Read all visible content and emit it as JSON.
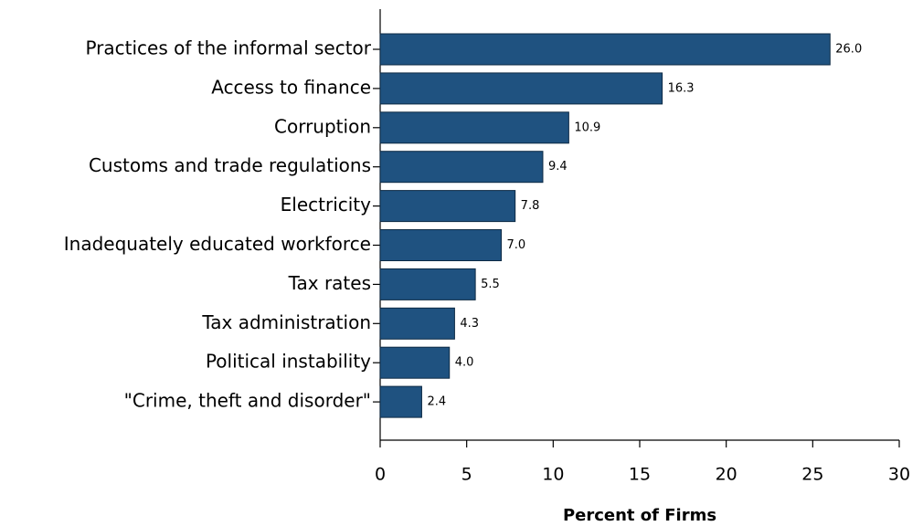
{
  "chart_data": {
    "type": "bar",
    "orientation": "horizontal",
    "x_label": "Percent of Firms",
    "categories": [
      "Practices of the informal sector",
      "Access to finance",
      "Corruption",
      "Customs and trade regulations",
      "Electricity",
      "Inadequately educated workforce",
      "Tax rates",
      "Tax administration",
      "Political instability",
      "\"Crime, theft and disorder\""
    ],
    "values": [
      26.0,
      16.3,
      10.9,
      9.4,
      7.8,
      7.0,
      5.5,
      4.3,
      4.0,
      2.4
    ],
    "value_labels": [
      "26.0",
      "16.3",
      "10.9",
      "9.4",
      "7.8",
      "7.0",
      "5.5",
      "4.3",
      "4.0",
      "2.4"
    ],
    "color": "#1f5280",
    "xlim": [
      0,
      30
    ],
    "xticks": [
      0,
      5,
      10,
      15,
      20,
      25,
      30
    ],
    "grid": false
  }
}
